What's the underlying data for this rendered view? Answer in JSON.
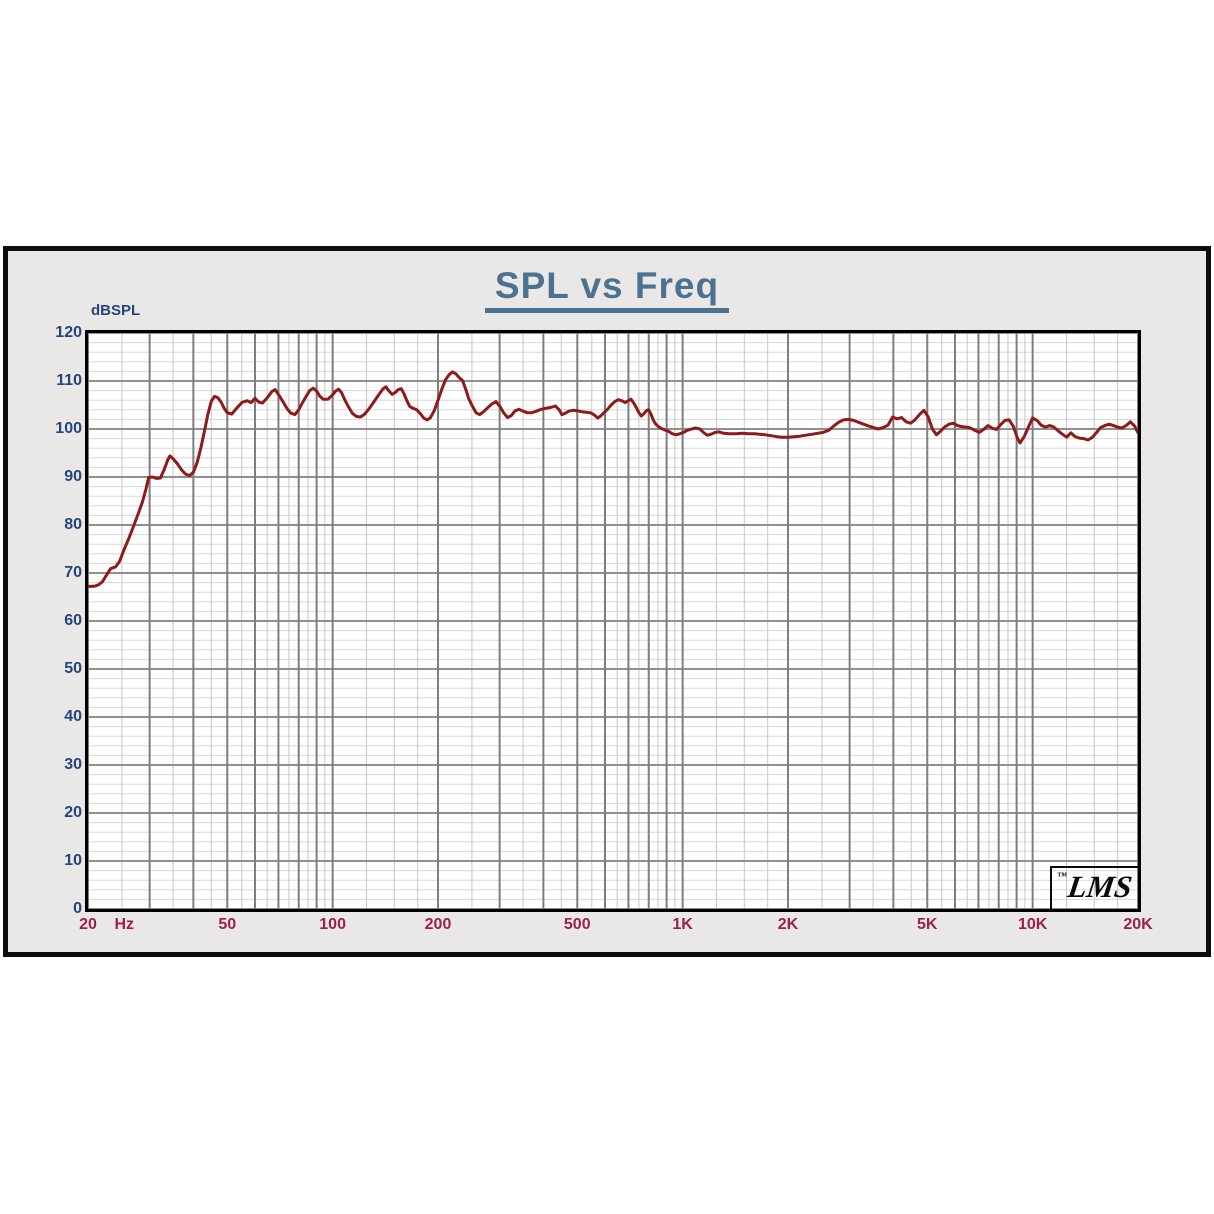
{
  "title": {
    "text": "SPL vs Freq",
    "color": "#4b7391"
  },
  "y_axis": {
    "unit_label": "dBSPL",
    "color": "#27457c",
    "ticks": [
      0,
      10,
      20,
      30,
      40,
      50,
      60,
      70,
      80,
      90,
      100,
      110,
      120
    ]
  },
  "x_axis": {
    "color": "#9c1f4e",
    "unit_label": "Hz",
    "unit_freq": 23.8,
    "ticks": [
      {
        "label": "20",
        "freq": 20
      },
      {
        "label": "50",
        "freq": 50
      },
      {
        "label": "100",
        "freq": 100
      },
      {
        "label": "200",
        "freq": 200
      },
      {
        "label": "500",
        "freq": 500
      },
      {
        "label": "1K",
        "freq": 1000
      },
      {
        "label": "2K",
        "freq": 2000
      },
      {
        "label": "5K",
        "freq": 5000
      },
      {
        "label": "10K",
        "freq": 10000
      },
      {
        "label": "20K",
        "freq": 20000
      }
    ]
  },
  "logo": {
    "trademark": "™",
    "text": "LMS"
  },
  "chart_data": {
    "type": "line",
    "title": "SPL vs Freq",
    "xlabel": "Hz",
    "ylabel": "dBSPL",
    "x_scale": "log",
    "xlim": [
      20,
      20000
    ],
    "ylim": [
      0,
      120
    ],
    "y_major_step": 10,
    "y_minor_step": 2,
    "grid": true,
    "legend": "none",
    "x_major_gridlines": [
      20,
      30,
      40,
      50,
      60,
      70,
      80,
      90,
      100,
      200,
      300,
      400,
      500,
      600,
      700,
      800,
      900,
      1000,
      2000,
      3000,
      4000,
      5000,
      6000,
      7000,
      8000,
      9000,
      10000,
      20000
    ],
    "x_minor_gridlines": [
      25,
      35,
      45,
      55,
      65,
      75,
      85,
      95,
      125,
      150,
      175,
      250,
      350,
      450,
      550,
      650,
      750,
      850,
      950,
      1250,
      1500,
      1750,
      2500,
      3500,
      4500,
      5500,
      6500,
      7500,
      8500,
      9500,
      12500,
      15000,
      17500
    ],
    "style": {
      "plot_bg": "#ffffff",
      "panel_bg": "#e9e8e6",
      "border": "#000000",
      "grid_major_h": "#8f8f8f",
      "grid_major_v": "#7e7e7e",
      "grid_minor_h": "#d8d8d6",
      "grid_minor_v": "#c6c6c4",
      "curve_width": 3
    },
    "series": [
      {
        "name": "SPL",
        "color": "#8e1a1a",
        "points": [
          [
            20,
            67.2
          ],
          [
            20.5,
            67.2
          ],
          [
            21,
            67.3
          ],
          [
            21.5,
            67.6
          ],
          [
            22,
            68.2
          ],
          [
            22.6,
            69.6
          ],
          [
            23.2,
            70.9
          ],
          [
            24,
            71.3
          ],
          [
            24.6,
            72.4
          ],
          [
            25.4,
            75.0
          ],
          [
            26.2,
            77.3
          ],
          [
            27,
            79.8
          ],
          [
            27.8,
            82.3
          ],
          [
            28.6,
            84.8
          ],
          [
            29.3,
            87.5
          ],
          [
            29.8,
            89.9
          ],
          [
            30.6,
            90.0
          ],
          [
            31.4,
            89.7
          ],
          [
            32.2,
            89.8
          ],
          [
            33,
            91.5
          ],
          [
            33.8,
            93.6
          ],
          [
            34.3,
            94.4
          ],
          [
            35,
            93.8
          ],
          [
            36,
            92.8
          ],
          [
            37,
            91.5
          ],
          [
            38,
            90.6
          ],
          [
            39,
            90.3
          ],
          [
            40,
            91.0
          ],
          [
            41,
            93.0
          ],
          [
            42,
            96.0
          ],
          [
            43,
            99.5
          ],
          [
            44,
            103.0
          ],
          [
            45,
            105.8
          ],
          [
            46,
            106.8
          ],
          [
            47,
            106.5
          ],
          [
            48,
            105.6
          ],
          [
            49,
            104.3
          ],
          [
            50,
            103.4
          ],
          [
            51.5,
            103.1
          ],
          [
            53,
            104.2
          ],
          [
            55,
            105.5
          ],
          [
            57,
            105.9
          ],
          [
            58.5,
            105.5
          ],
          [
            60,
            106.4
          ],
          [
            61.5,
            105.6
          ],
          [
            63,
            105.4
          ],
          [
            65,
            106.5
          ],
          [
            67,
            107.8
          ],
          [
            68.5,
            108.2
          ],
          [
            70,
            107.2
          ],
          [
            72,
            105.8
          ],
          [
            74,
            104.3
          ],
          [
            76,
            103.3
          ],
          [
            78,
            103.0
          ],
          [
            80,
            104.0
          ],
          [
            82,
            105.5
          ],
          [
            84,
            106.8
          ],
          [
            86,
            108.0
          ],
          [
            88,
            108.5
          ],
          [
            90,
            107.9
          ],
          [
            92,
            106.8
          ],
          [
            94,
            106.2
          ],
          [
            97,
            106.2
          ],
          [
            100,
            107.1
          ],
          [
            102,
            107.9
          ],
          [
            104,
            108.3
          ],
          [
            106,
            107.6
          ],
          [
            108,
            106.3
          ],
          [
            111,
            104.6
          ],
          [
            114,
            103.2
          ],
          [
            117,
            102.6
          ],
          [
            120,
            102.5
          ],
          [
            123,
            103.0
          ],
          [
            127,
            104.2
          ],
          [
            131,
            105.6
          ],
          [
            135,
            107.0
          ],
          [
            139,
            108.3
          ],
          [
            142,
            108.8
          ],
          [
            145,
            107.9
          ],
          [
            148,
            107.2
          ],
          [
            151,
            107.6
          ],
          [
            154,
            108.2
          ],
          [
            157,
            108.4
          ],
          [
            160,
            107.3
          ],
          [
            163,
            105.9
          ],
          [
            166,
            104.7
          ],
          [
            170,
            104.3
          ],
          [
            174,
            104.0
          ],
          [
            178,
            103.2
          ],
          [
            182,
            102.3
          ],
          [
            186,
            101.9
          ],
          [
            190,
            102.3
          ],
          [
            195,
            103.8
          ],
          [
            200,
            106.0
          ],
          [
            205,
            108.3
          ],
          [
            210,
            110.2
          ],
          [
            215,
            111.3
          ],
          [
            220,
            111.9
          ],
          [
            225,
            111.5
          ],
          [
            230,
            110.7
          ],
          [
            235,
            110.1
          ],
          [
            240,
            108.3
          ],
          [
            245,
            106.3
          ],
          [
            251,
            104.7
          ],
          [
            257,
            103.4
          ],
          [
            263,
            103.0
          ],
          [
            270,
            103.6
          ],
          [
            277,
            104.4
          ],
          [
            285,
            105.2
          ],
          [
            293,
            105.7
          ],
          [
            300,
            104.8
          ],
          [
            308,
            103.4
          ],
          [
            316,
            102.4
          ],
          [
            324,
            102.8
          ],
          [
            332,
            103.8
          ],
          [
            341,
            104.1
          ],
          [
            350,
            103.7
          ],
          [
            360,
            103.4
          ],
          [
            371,
            103.4
          ],
          [
            382,
            103.7
          ],
          [
            394,
            104.1
          ],
          [
            406,
            104.3
          ],
          [
            420,
            104.5
          ],
          [
            433,
            104.8
          ],
          [
            444,
            104.0
          ],
          [
            452,
            103.0
          ],
          [
            462,
            103.3
          ],
          [
            473,
            103.7
          ],
          [
            486,
            103.9
          ],
          [
            500,
            103.8
          ],
          [
            515,
            103.6
          ],
          [
            530,
            103.5
          ],
          [
            545,
            103.4
          ],
          [
            560,
            102.9
          ],
          [
            572,
            102.3
          ],
          [
            585,
            102.8
          ],
          [
            598,
            103.5
          ],
          [
            610,
            104.1
          ],
          [
            625,
            105.0
          ],
          [
            640,
            105.7
          ],
          [
            655,
            106.1
          ],
          [
            670,
            105.9
          ],
          [
            685,
            105.5
          ],
          [
            700,
            105.9
          ],
          [
            712,
            106.2
          ],
          [
            725,
            105.4
          ],
          [
            738,
            104.4
          ],
          [
            750,
            103.4
          ],
          [
            762,
            102.7
          ],
          [
            775,
            103.2
          ],
          [
            790,
            103.9
          ],
          [
            800,
            104.0
          ],
          [
            812,
            103.1
          ],
          [
            825,
            101.8
          ],
          [
            838,
            101.0
          ],
          [
            852,
            100.5
          ],
          [
            870,
            100.1
          ],
          [
            890,
            99.8
          ],
          [
            912,
            99.5
          ],
          [
            935,
            99.0
          ],
          [
            958,
            98.8
          ],
          [
            980,
            99.0
          ],
          [
            1005,
            99.3
          ],
          [
            1030,
            99.7
          ],
          [
            1060,
            100.0
          ],
          [
            1090,
            100.2
          ],
          [
            1120,
            100.0
          ],
          [
            1150,
            99.2
          ],
          [
            1175,
            98.7
          ],
          [
            1205,
            98.9
          ],
          [
            1240,
            99.3
          ],
          [
            1270,
            99.4
          ],
          [
            1310,
            99.1
          ],
          [
            1360,
            99.0
          ],
          [
            1420,
            99.0
          ],
          [
            1480,
            99.1
          ],
          [
            1540,
            99.0
          ],
          [
            1600,
            99.0
          ],
          [
            1660,
            98.9
          ],
          [
            1720,
            98.8
          ],
          [
            1790,
            98.6
          ],
          [
            1860,
            98.4
          ],
          [
            1930,
            98.3
          ],
          [
            2000,
            98.3
          ],
          [
            2080,
            98.4
          ],
          [
            2160,
            98.5
          ],
          [
            2250,
            98.7
          ],
          [
            2340,
            98.9
          ],
          [
            2430,
            99.1
          ],
          [
            2520,
            99.3
          ],
          [
            2610,
            99.7
          ],
          [
            2700,
            100.6
          ],
          [
            2790,
            101.4
          ],
          [
            2880,
            101.9
          ],
          [
            2980,
            102.0
          ],
          [
            3080,
            101.8
          ],
          [
            3180,
            101.4
          ],
          [
            3290,
            101.0
          ],
          [
            3400,
            100.6
          ],
          [
            3510,
            100.3
          ],
          [
            3620,
            100.0
          ],
          [
            3740,
            100.3
          ],
          [
            3860,
            100.8
          ],
          [
            3980,
            102.5
          ],
          [
            4100,
            102.1
          ],
          [
            4220,
            102.4
          ],
          [
            4350,
            101.5
          ],
          [
            4480,
            101.2
          ],
          [
            4610,
            101.9
          ],
          [
            4750,
            103.0
          ],
          [
            4890,
            103.9
          ],
          [
            5030,
            102.5
          ],
          [
            5170,
            100.0
          ],
          [
            5310,
            98.8
          ],
          [
            5450,
            99.5
          ],
          [
            5600,
            100.4
          ],
          [
            5760,
            101.0
          ],
          [
            5930,
            101.2
          ],
          [
            6100,
            100.7
          ],
          [
            6280,
            100.5
          ],
          [
            6460,
            100.4
          ],
          [
            6650,
            100.2
          ],
          [
            6840,
            99.7
          ],
          [
            7040,
            99.3
          ],
          [
            7240,
            99.9
          ],
          [
            7450,
            100.7
          ],
          [
            7660,
            100.2
          ],
          [
            7880,
            99.9
          ],
          [
            8100,
            100.9
          ],
          [
            8330,
            101.8
          ],
          [
            8570,
            101.9
          ],
          [
            8810,
            100.5
          ],
          [
            9060,
            98.0
          ],
          [
            9210,
            97.1
          ],
          [
            9470,
            98.5
          ],
          [
            9740,
            100.5
          ],
          [
            10000,
            102.3
          ],
          [
            10290,
            101.8
          ],
          [
            10580,
            100.8
          ],
          [
            10880,
            100.4
          ],
          [
            11190,
            100.7
          ],
          [
            11500,
            100.4
          ],
          [
            11830,
            99.6
          ],
          [
            12170,
            98.9
          ],
          [
            12510,
            98.3
          ],
          [
            12860,
            99.2
          ],
          [
            13220,
            98.4
          ],
          [
            13600,
            98.1
          ],
          [
            13980,
            98.0
          ],
          [
            14380,
            97.7
          ],
          [
            14790,
            98.2
          ],
          [
            15200,
            99.2
          ],
          [
            15640,
            100.3
          ],
          [
            16080,
            100.7
          ],
          [
            16540,
            101.0
          ],
          [
            17010,
            100.7
          ],
          [
            17490,
            100.4
          ],
          [
            17990,
            100.2
          ],
          [
            18500,
            100.7
          ],
          [
            19020,
            101.5
          ],
          [
            19560,
            100.6
          ],
          [
            20000,
            99.2
          ]
        ]
      }
    ]
  }
}
